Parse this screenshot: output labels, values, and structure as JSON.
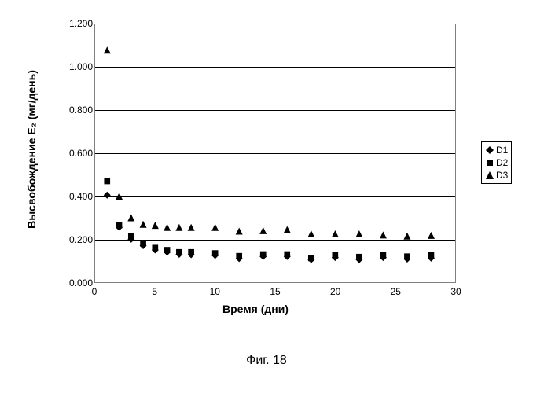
{
  "chart": {
    "type": "scatter",
    "xlabel": "Время (дни)",
    "ylabel": "Высвобождение E₂ (мг/день)",
    "label_fontsize": 14,
    "tick_fontsize": 12,
    "xlim": [
      0,
      30
    ],
    "ylim": [
      0.0,
      1.2
    ],
    "xtick_step": 5,
    "ytick_step": 0.2,
    "xticks": [
      0,
      5,
      10,
      15,
      20,
      25,
      30
    ],
    "yticks": [
      "0.000",
      "0.200",
      "0.400",
      "0.600",
      "0.800",
      "1.000",
      "1.200"
    ],
    "background_color": "#ffffff",
    "grid_color": "#000000",
    "border_color": "#808080",
    "marker_size": 9,
    "series": [
      {
        "name": "D1",
        "marker": "diamond",
        "color": "#000000",
        "data": [
          {
            "x": 1,
            "y": 0.405
          },
          {
            "x": 2,
            "y": 0.255
          },
          {
            "x": 3,
            "y": 0.2
          },
          {
            "x": 4,
            "y": 0.17
          },
          {
            "x": 5,
            "y": 0.15
          },
          {
            "x": 6,
            "y": 0.14
          },
          {
            "x": 7,
            "y": 0.13
          },
          {
            "x": 8,
            "y": 0.128
          },
          {
            "x": 10,
            "y": 0.125
          },
          {
            "x": 12,
            "y": 0.11
          },
          {
            "x": 14,
            "y": 0.12
          },
          {
            "x": 16,
            "y": 0.12
          },
          {
            "x": 18,
            "y": 0.105
          },
          {
            "x": 20,
            "y": 0.115
          },
          {
            "x": 22,
            "y": 0.105
          },
          {
            "x": 24,
            "y": 0.115
          },
          {
            "x": 26,
            "y": 0.108
          },
          {
            "x": 28,
            "y": 0.112
          }
        ]
      },
      {
        "name": "D2",
        "marker": "square",
        "color": "#000000",
        "data": [
          {
            "x": 1,
            "y": 0.47
          },
          {
            "x": 2,
            "y": 0.265
          },
          {
            "x": 3,
            "y": 0.215
          },
          {
            "x": 4,
            "y": 0.18
          },
          {
            "x": 5,
            "y": 0.16
          },
          {
            "x": 6,
            "y": 0.15
          },
          {
            "x": 7,
            "y": 0.14
          },
          {
            "x": 8,
            "y": 0.14
          },
          {
            "x": 10,
            "y": 0.135
          },
          {
            "x": 12,
            "y": 0.122
          },
          {
            "x": 14,
            "y": 0.13
          },
          {
            "x": 16,
            "y": 0.13
          },
          {
            "x": 18,
            "y": 0.112
          },
          {
            "x": 20,
            "y": 0.125
          },
          {
            "x": 22,
            "y": 0.118
          },
          {
            "x": 24,
            "y": 0.125
          },
          {
            "x": 26,
            "y": 0.12
          },
          {
            "x": 28,
            "y": 0.125
          }
        ]
      },
      {
        "name": "D3",
        "marker": "triangle",
        "color": "#000000",
        "data": [
          {
            "x": 1,
            "y": 1.08
          },
          {
            "x": 2,
            "y": 0.4
          },
          {
            "x": 3,
            "y": 0.3
          },
          {
            "x": 4,
            "y": 0.27
          },
          {
            "x": 5,
            "y": 0.265
          },
          {
            "x": 6,
            "y": 0.255
          },
          {
            "x": 7,
            "y": 0.255
          },
          {
            "x": 8,
            "y": 0.255
          },
          {
            "x": 10,
            "y": 0.255
          },
          {
            "x": 12,
            "y": 0.238
          },
          {
            "x": 14,
            "y": 0.24
          },
          {
            "x": 16,
            "y": 0.245
          },
          {
            "x": 18,
            "y": 0.225
          },
          {
            "x": 20,
            "y": 0.225
          },
          {
            "x": 22,
            "y": 0.225
          },
          {
            "x": 24,
            "y": 0.22
          },
          {
            "x": 26,
            "y": 0.215
          },
          {
            "x": 28,
            "y": 0.218
          }
        ]
      }
    ],
    "legend": {
      "position": "right",
      "items": [
        "D1",
        "D2",
        "D3"
      ]
    }
  },
  "caption": "Фиг. 18"
}
